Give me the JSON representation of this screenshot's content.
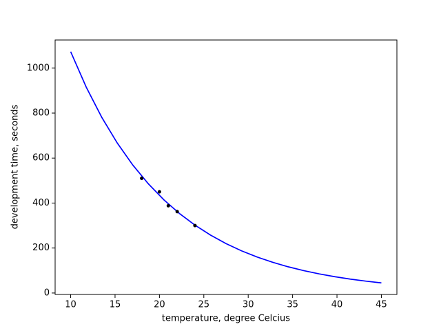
{
  "chart_data": {
    "type": "line",
    "xlabel": "temperature, degree Celcius",
    "ylabel": "development time, seconds",
    "xlim": [
      8.25,
      46.75
    ],
    "xticks": [
      10,
      15,
      20,
      25,
      30,
      35,
      40,
      45
    ],
    "ylim": [
      -6.4,
      1125
    ],
    "yticks": [
      0,
      200,
      400,
      600,
      800,
      1000
    ],
    "grid": false,
    "series": [
      {
        "style": "line",
        "color": "#0000ff",
        "x": [
          10,
          11.75,
          13.5,
          15.25,
          17,
          18.75,
          20.5,
          22.25,
          24,
          25.75,
          27.5,
          29.25,
          31,
          32.75,
          34.5,
          36.25,
          38,
          39.75,
          41.5,
          43.25,
          45
        ],
        "values": [
          1073,
          915.7,
          781.5,
          666.9,
          569.1,
          485.7,
          414.5,
          353.7,
          301.9,
          257.6,
          219.8,
          187.6,
          160.1,
          136.6,
          116.6,
          99.5,
          84.9,
          72.5,
          61.8,
          52.8,
          45.0
        ]
      },
      {
        "style": "scatter",
        "color": "#000000",
        "x": [
          18,
          20,
          21,
          22,
          24
        ],
        "values": [
          510,
          450,
          388,
          362,
          300
        ]
      }
    ]
  }
}
